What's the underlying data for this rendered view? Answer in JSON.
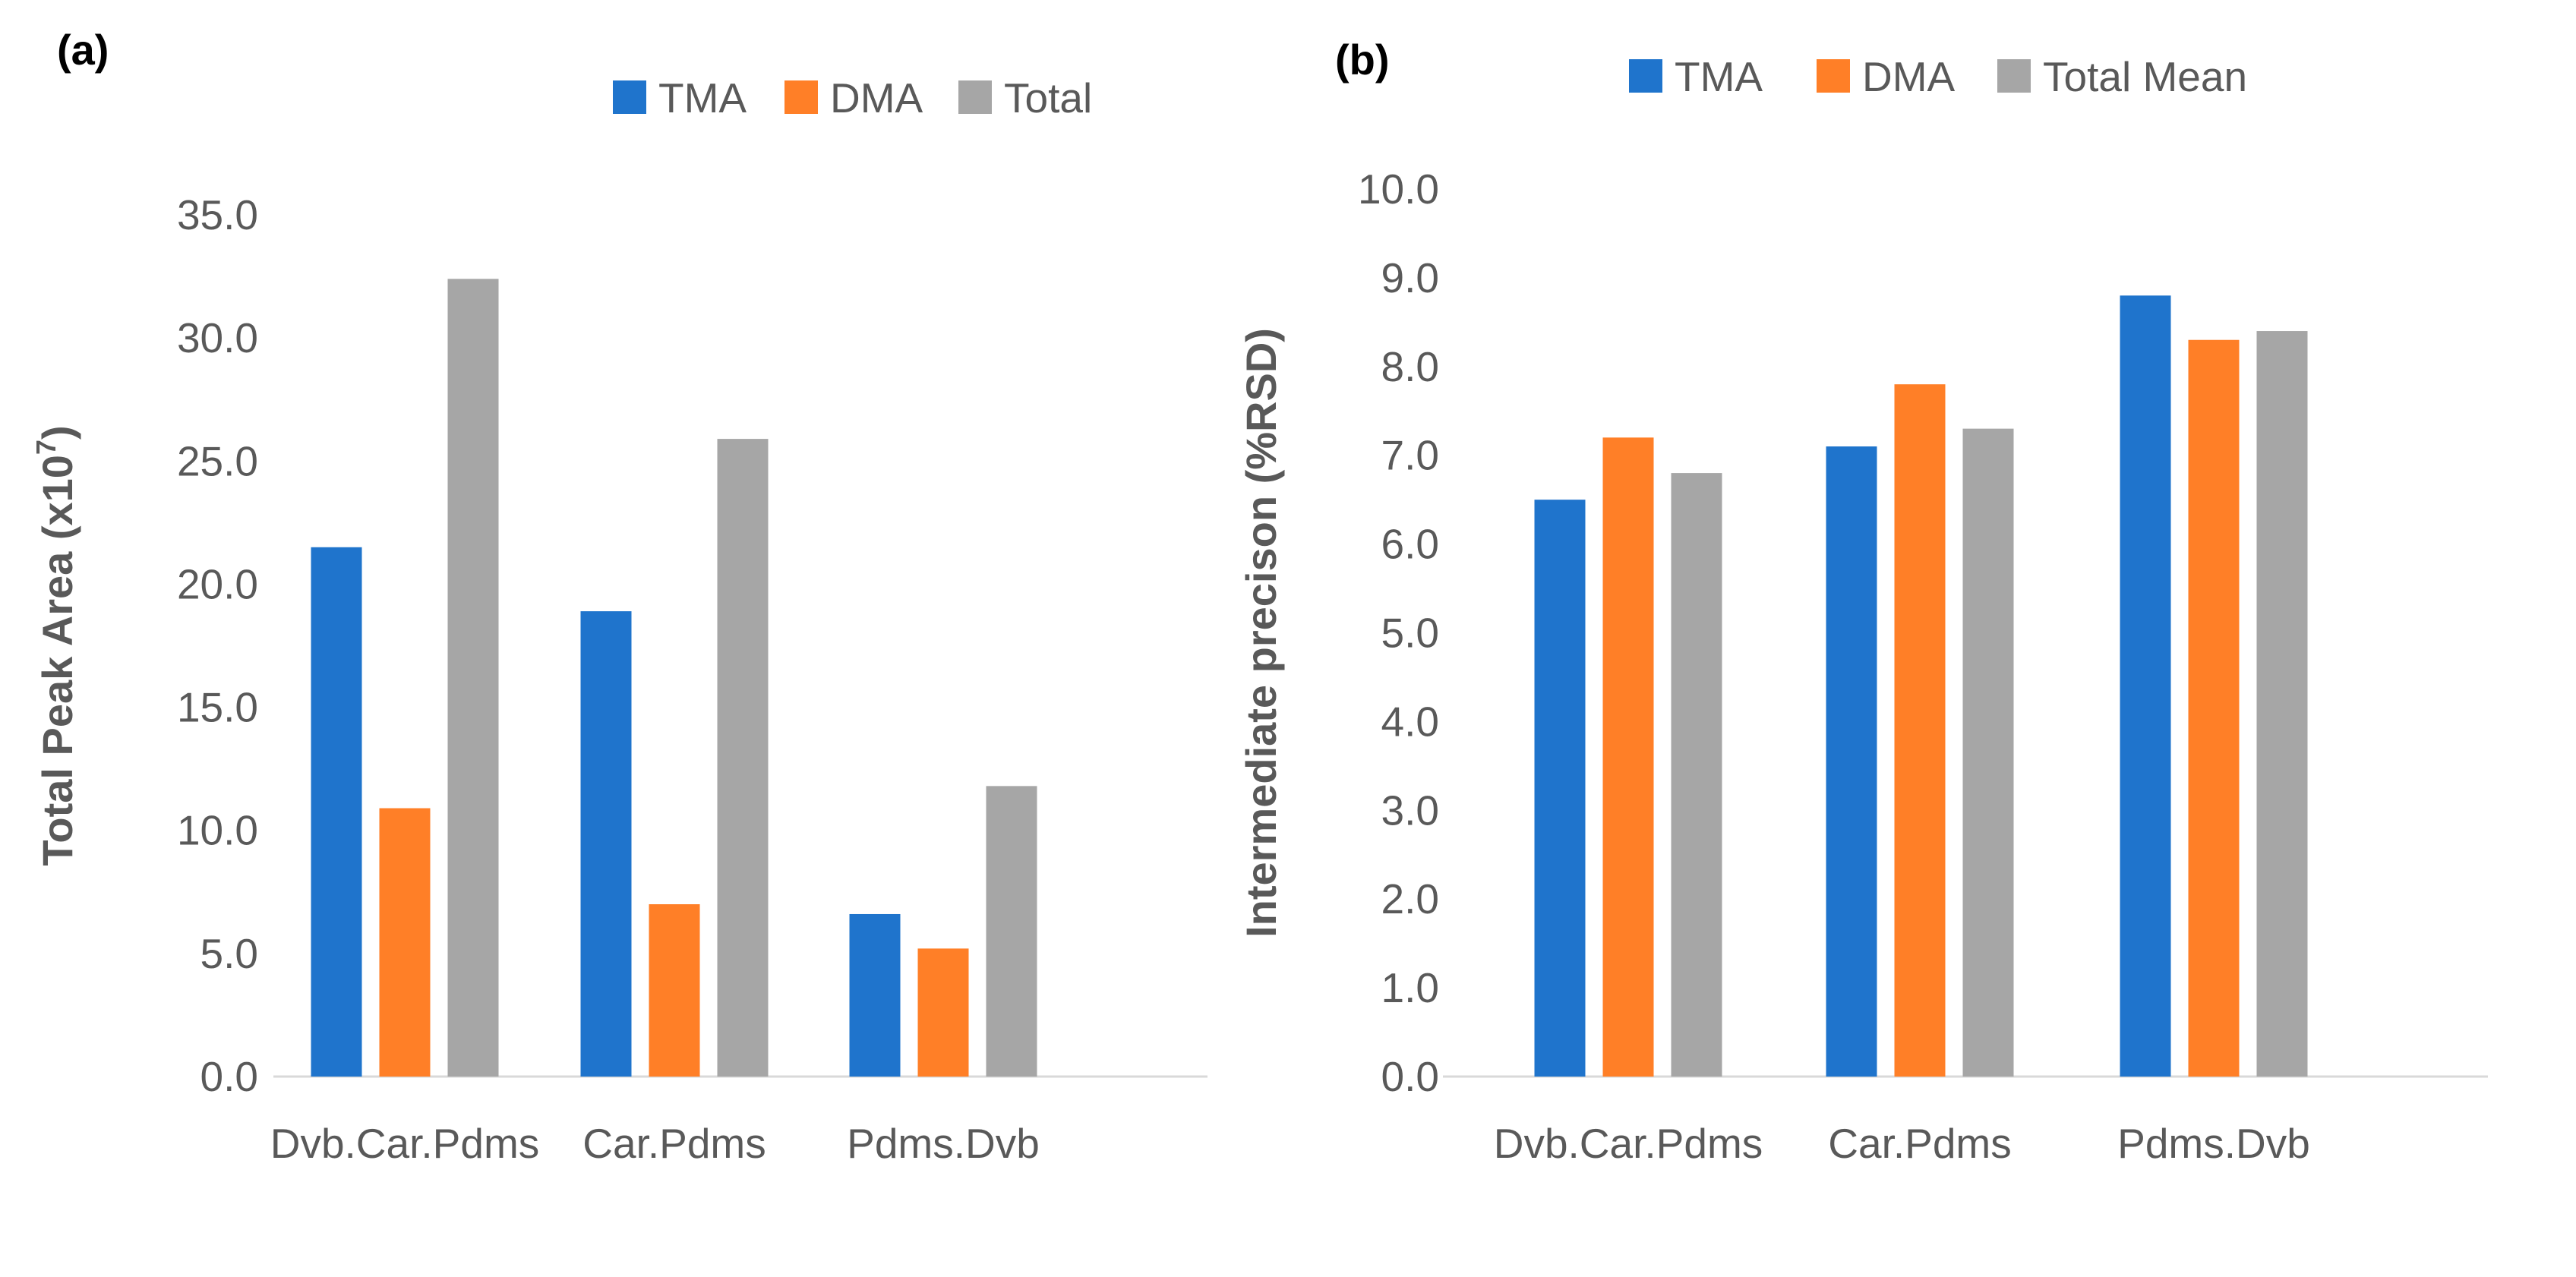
{
  "chart_data": [
    {
      "type": "bar",
      "panel_label": "(a)",
      "ylabel": "Total Peak Area (x10",
      "ylabel_sup": "7",
      "ylabel_end": ")",
      "ylim": [
        0,
        35
      ],
      "ytick_step": 5,
      "ytick_labels": [
        "0.0",
        "5.0",
        "10.0",
        "15.0",
        "20.0",
        "25.0",
        "30.0",
        "35.0"
      ],
      "categories": [
        "Dvb.Car.Pdms",
        "Car.Pdms",
        "Pdms.Dvb"
      ],
      "series": [
        {
          "name": "TMA",
          "color": "#1F74CC",
          "values": [
            21.5,
            18.9,
            6.6
          ]
        },
        {
          "name": "DMA",
          "color": "#FF7F27",
          "values": [
            10.9,
            7.0,
            5.2
          ]
        },
        {
          "name": "Total",
          "color": "#A6A6A6",
          "values": [
            32.4,
            25.9,
            11.8
          ]
        }
      ],
      "legend_position": "top-right",
      "grid": false
    },
    {
      "type": "bar",
      "panel_label": "(b)",
      "ylabel": "Intermediate precison (%RSD)",
      "ylim": [
        0,
        10
      ],
      "ytick_step": 1,
      "ytick_labels": [
        "0.0",
        "1.0",
        "2.0",
        "3.0",
        "4.0",
        "5.0",
        "6.0",
        "7.0",
        "8.0",
        "9.0",
        "10.0"
      ],
      "categories": [
        "Dvb.Car.Pdms",
        "Car.Pdms",
        "Pdms.Dvb"
      ],
      "series": [
        {
          "name": "TMA",
          "color": "#1F74CC",
          "values": [
            6.5,
            7.1,
            8.8
          ]
        },
        {
          "name": "DMA",
          "color": "#FF7F27",
          "values": [
            7.2,
            7.8,
            8.3
          ]
        },
        {
          "name": "Total Mean",
          "color": "#A6A6A6",
          "values": [
            6.8,
            7.3,
            8.4
          ]
        }
      ],
      "legend_position": "top-right",
      "grid": false
    }
  ]
}
